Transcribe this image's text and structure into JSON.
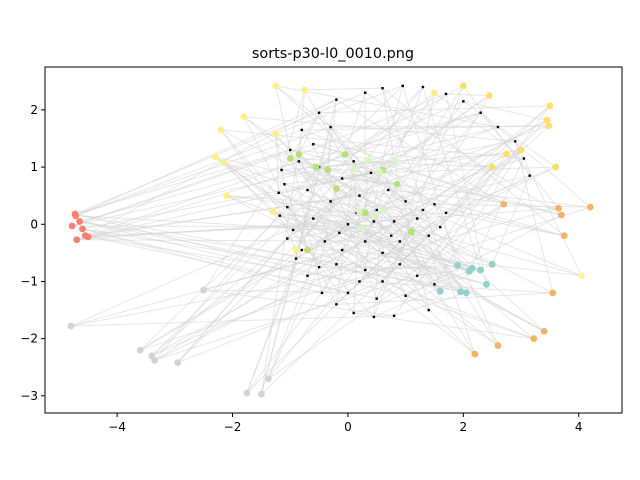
{
  "chart_data": {
    "type": "scatter",
    "title": "sorts-p30-l0_0010.png",
    "xlabel": "",
    "ylabel": "",
    "xlim": [
      -5.25,
      4.75
    ],
    "ylim": [
      -3.3,
      2.75
    ],
    "xticks": [
      -4,
      -2,
      0,
      2,
      4
    ],
    "yticks": [
      -3,
      -2,
      -1,
      0,
      1,
      2
    ],
    "xtick_labels": [
      "−4",
      "−2",
      "0",
      "2",
      "4"
    ],
    "ytick_labels": [
      "−3",
      "−2",
      "−1",
      "0",
      "1",
      "2"
    ],
    "grid": false,
    "connector_color": "#d3d3d3",
    "core_color": "#000000",
    "core_points": [
      [
        -0.2,
        2.18
      ],
      [
        0.3,
        2.3
      ],
      [
        0.6,
        2.38
      ],
      [
        0.95,
        2.42
      ],
      [
        1.3,
        2.4
      ],
      [
        1.7,
        2.28
      ],
      [
        2.0,
        2.15
      ],
      [
        2.3,
        1.95
      ],
      [
        2.6,
        1.7
      ],
      [
        2.9,
        1.45
      ],
      [
        3.05,
        1.15
      ],
      [
        3.15,
        0.85
      ],
      [
        -0.5,
        1.95
      ],
      [
        -0.8,
        1.65
      ],
      [
        -1.0,
        1.3
      ],
      [
        -1.15,
        0.95
      ],
      [
        -1.2,
        0.55
      ],
      [
        -1.18,
        0.15
      ],
      [
        -1.05,
        -0.25
      ],
      [
        -0.9,
        -0.6
      ],
      [
        -0.7,
        -0.9
      ],
      [
        -0.45,
        -1.2
      ],
      [
        -0.2,
        -1.4
      ],
      [
        0.1,
        -1.55
      ],
      [
        0.45,
        -1.62
      ],
      [
        0.8,
        -1.6
      ],
      [
        -0.3,
        1.7
      ],
      [
        -0.6,
        1.4
      ],
      [
        -0.85,
        1.1
      ],
      [
        -1.1,
        0.7
      ],
      [
        -1.05,
        0.3
      ],
      [
        -0.95,
        -0.1
      ],
      [
        -0.8,
        -0.45
      ],
      [
        -0.5,
        -0.75
      ],
      [
        -0.1,
        0.8
      ],
      [
        0.2,
        0.5
      ],
      [
        0.5,
        0.25
      ],
      [
        0.8,
        0.05
      ],
      [
        1.1,
        -0.15
      ],
      [
        1.4,
        -0.2
      ],
      [
        1.6,
        -0.05
      ],
      [
        1.7,
        0.2
      ],
      [
        0.0,
        0.0
      ],
      [
        0.3,
        -0.3
      ],
      [
        0.6,
        -0.5
      ],
      [
        0.9,
        -0.7
      ],
      [
        1.2,
        -0.9
      ],
      [
        1.5,
        -1.05
      ],
      [
        0.2,
        -1.0
      ],
      [
        -0.2,
        -0.7
      ],
      [
        -0.4,
        -0.3
      ],
      [
        -0.6,
        0.1
      ],
      [
        -0.3,
        0.4
      ],
      [
        0.1,
        1.1
      ],
      [
        0.4,
        0.9
      ],
      [
        0.7,
        0.6
      ],
      [
        1.0,
        0.4
      ],
      [
        1.3,
        0.25
      ],
      [
        -0.7,
        0.6
      ],
      [
        -0.5,
        1.0
      ],
      [
        0.0,
        -1.2
      ],
      [
        0.5,
        -1.3
      ],
      [
        1.0,
        -1.25
      ],
      [
        1.4,
        -1.5
      ],
      [
        0.3,
        -0.8
      ],
      [
        -0.1,
        -0.45
      ],
      [
        0.6,
        -1.0
      ],
      [
        0.9,
        -0.3
      ],
      [
        1.2,
        0.1
      ],
      [
        1.5,
        0.35
      ],
      [
        0.15,
        0.2
      ],
      [
        -0.15,
        -0.15
      ],
      [
        0.45,
        0.05
      ],
      [
        0.75,
        -0.2
      ]
    ],
    "series": [
      {
        "color": "#fa8072",
        "points": [
          [
            -4.72,
            0.15
          ],
          [
            -4.65,
            0.05
          ],
          [
            -4.78,
            -0.03
          ],
          [
            -4.6,
            -0.08
          ],
          [
            -4.7,
            -0.27
          ],
          [
            -4.55,
            -0.2
          ],
          [
            -4.5,
            -0.22
          ],
          [
            -4.73,
            0.18
          ]
        ]
      },
      {
        "color": "#ffee8a",
        "points": [
          [
            -1.25,
            2.42
          ],
          [
            -0.75,
            2.35
          ],
          [
            -1.8,
            1.88
          ],
          [
            -1.25,
            1.58
          ],
          [
            -2.2,
            1.65
          ],
          [
            -2.3,
            1.18
          ],
          [
            -2.15,
            1.08
          ],
          [
            -2.1,
            0.5
          ],
          [
            -1.3,
            0.22
          ],
          [
            1.5,
            2.3
          ],
          [
            -0.9,
            -0.45
          ]
        ]
      },
      {
        "color": "#ffde6b",
        "points": [
          [
            2.0,
            2.42
          ],
          [
            2.45,
            2.25
          ],
          [
            3.5,
            2.07
          ],
          [
            3.45,
            1.82
          ],
          [
            3.48,
            1.72
          ],
          [
            2.75,
            1.23
          ],
          [
            2.5,
            1.0
          ],
          [
            3.0,
            1.3
          ],
          [
            3.6,
            1.0
          ]
        ]
      },
      {
        "color": "#f7b267",
        "points": [
          [
            2.7,
            0.35
          ],
          [
            3.65,
            0.28
          ],
          [
            3.7,
            0.16
          ],
          [
            4.2,
            0.3
          ],
          [
            3.75,
            -0.2
          ],
          [
            3.55,
            -1.2
          ],
          [
            3.4,
            -1.87
          ],
          [
            3.22,
            -2.0
          ],
          [
            2.6,
            -2.12
          ],
          [
            2.2,
            -2.27
          ]
        ]
      },
      {
        "color": "#fff59d",
        "points": [
          [
            4.05,
            -0.9
          ]
        ]
      },
      {
        "color": "#8fd3c6",
        "points": [
          [
            1.9,
            -0.72
          ],
          [
            2.1,
            -0.82
          ],
          [
            2.3,
            -0.8
          ],
          [
            2.5,
            -0.7
          ],
          [
            2.4,
            -1.05
          ],
          [
            2.05,
            -1.2
          ],
          [
            1.95,
            -1.18
          ],
          [
            1.6,
            -1.17
          ],
          [
            2.15,
            -0.77
          ]
        ]
      },
      {
        "color": "#b7e07a",
        "points": [
          [
            -1.0,
            1.15
          ],
          [
            -0.85,
            1.22
          ],
          [
            -0.55,
            1.0
          ],
          [
            -0.35,
            0.95
          ],
          [
            -0.2,
            0.62
          ],
          [
            -0.05,
            1.22
          ],
          [
            0.6,
            0.95
          ],
          [
            0.85,
            0.7
          ],
          [
            1.1,
            -0.13
          ],
          [
            -0.7,
            -0.45
          ],
          [
            0.3,
            0.2
          ]
        ]
      },
      {
        "color": "#d6f5c5",
        "points": [
          [
            0.35,
            1.12
          ],
          [
            0.8,
            1.12
          ],
          [
            0.1,
            0.97
          ],
          [
            0.55,
            0.92
          ],
          [
            0.2,
            0.22
          ],
          [
            0.45,
            0.15
          ],
          [
            0.6,
            0.25
          ],
          [
            0.25,
            -0.05
          ]
        ]
      },
      {
        "color": "#d3d3d3",
        "points": [
          [
            -4.8,
            -1.78
          ],
          [
            -3.6,
            -2.2
          ],
          [
            -3.4,
            -2.3
          ],
          [
            -3.35,
            -2.38
          ],
          [
            -2.95,
            -2.42
          ],
          [
            -2.5,
            -1.15
          ],
          [
            -1.75,
            -2.95
          ],
          [
            -1.5,
            -2.97
          ],
          [
            -1.38,
            -2.7
          ]
        ]
      }
    ]
  }
}
